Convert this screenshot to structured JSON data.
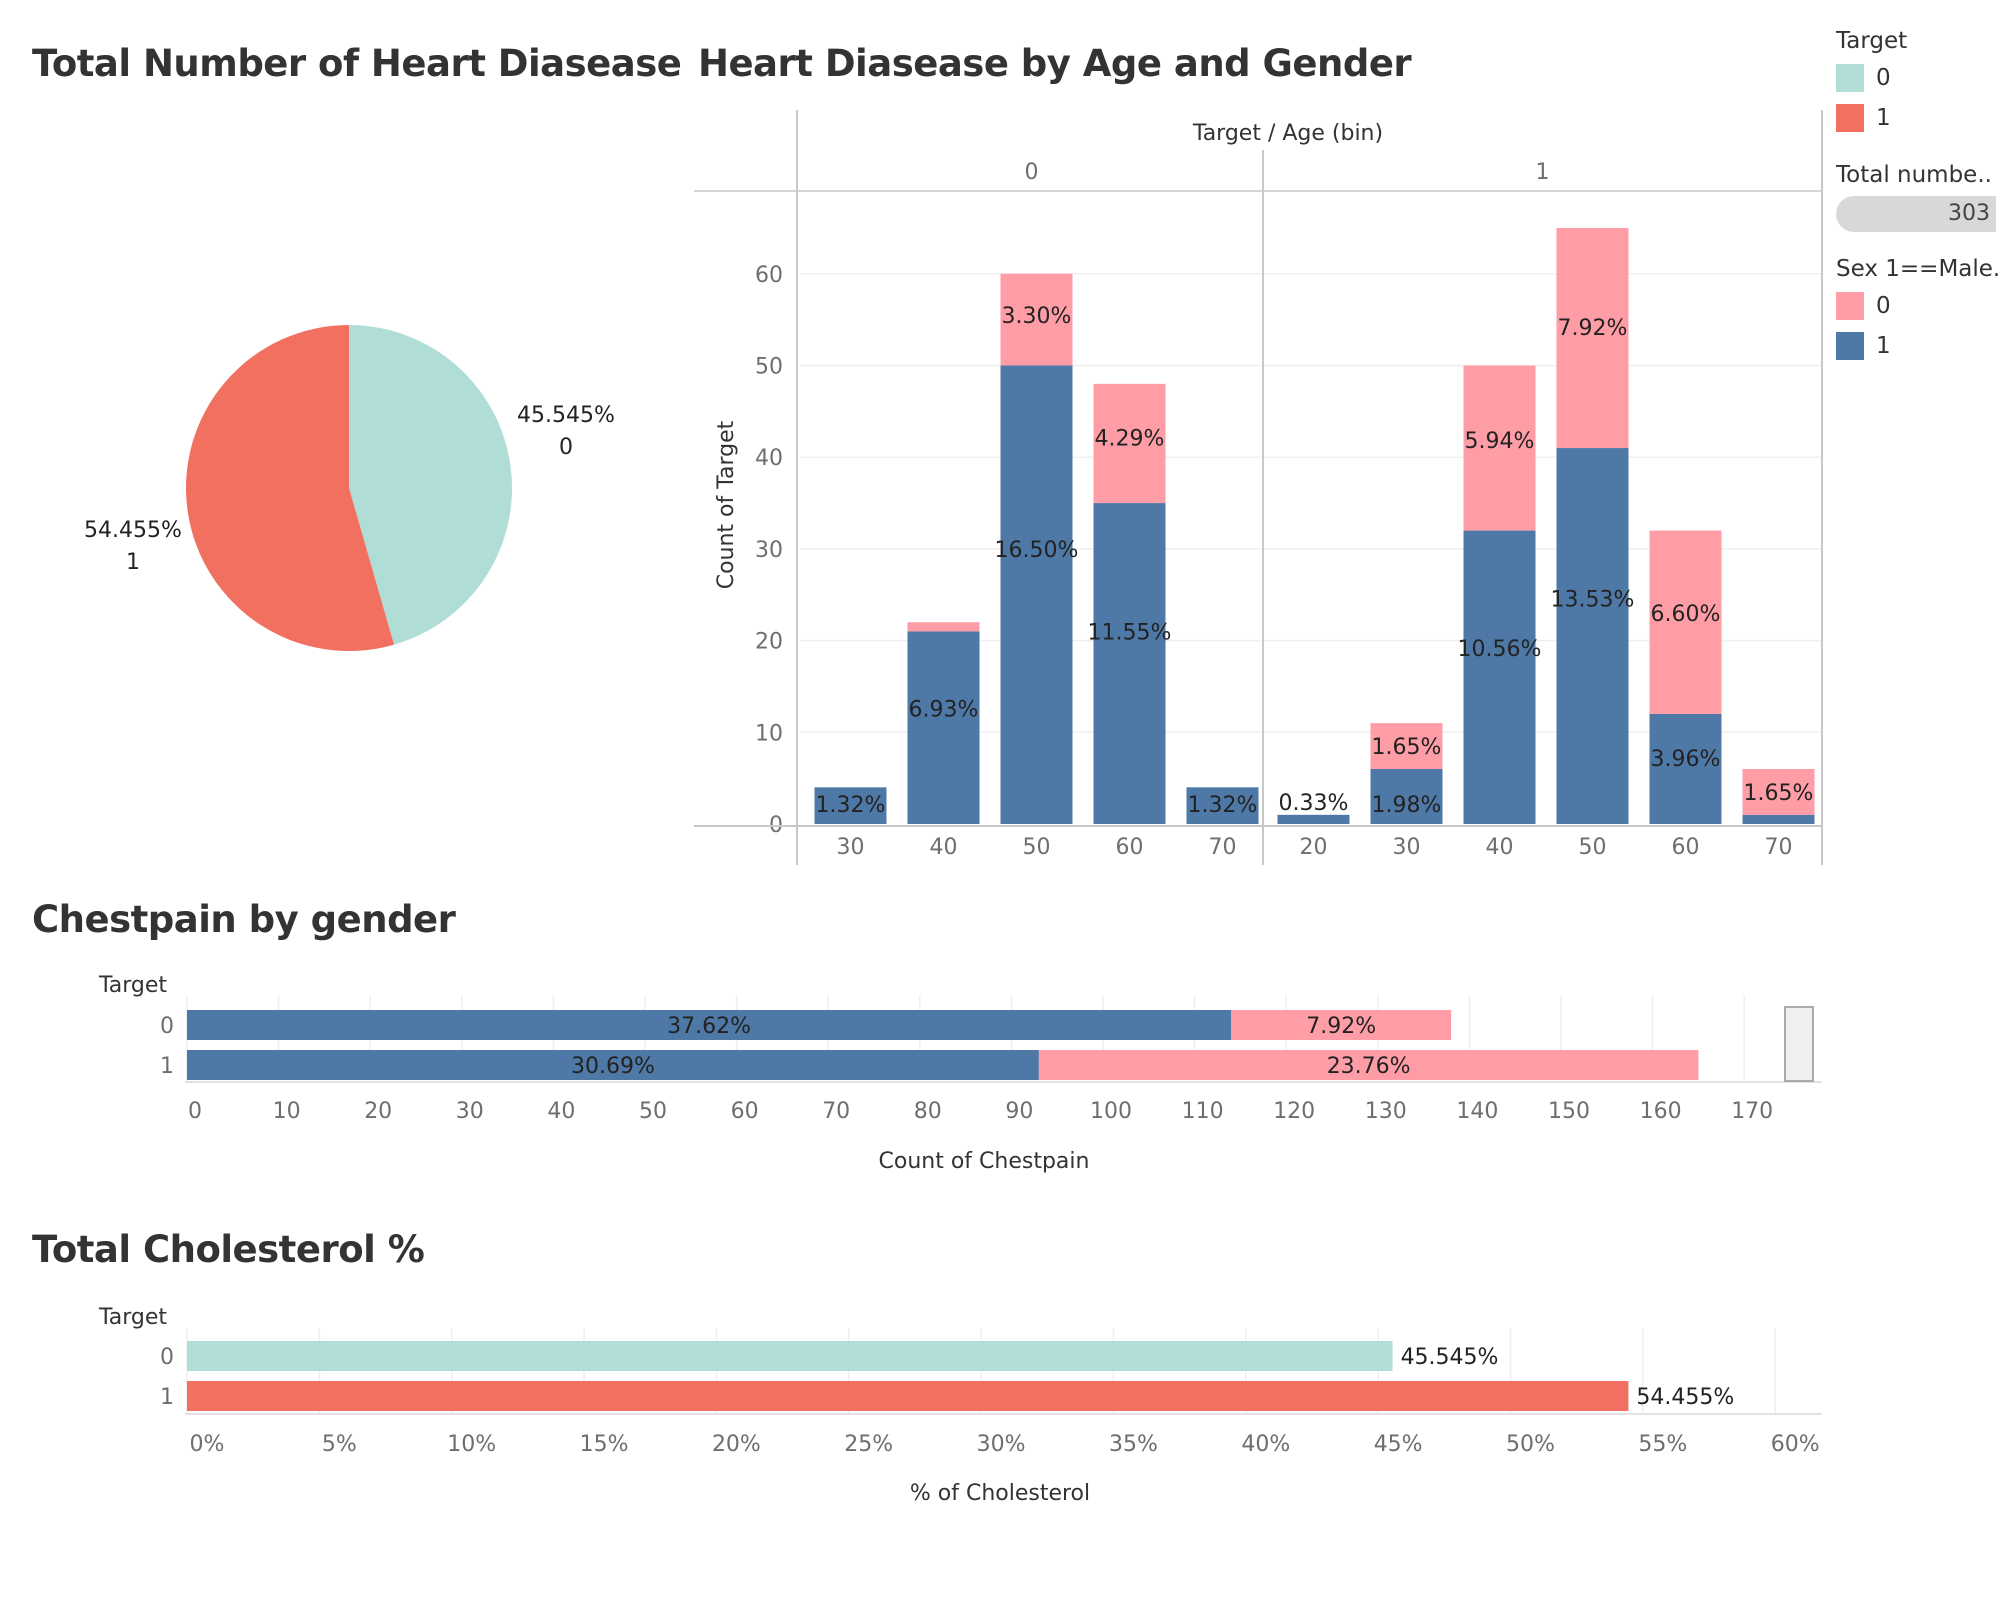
{
  "titles": {
    "pie": "Total Number of Heart Diasease",
    "age": "Heart Diasease by Age and Gender",
    "chest": "Chestpain by gender",
    "chol": "Total Cholesterol %"
  },
  "legend": {
    "target_title": "Target",
    "target_items": [
      {
        "label": "0",
        "color": "#b0ddd6"
      },
      {
        "label": "1",
        "color": "#f27060"
      }
    ],
    "total_title": "Total numbe..",
    "total_value": "303",
    "sex_title": "Sex 1==Male..",
    "sex_items": [
      {
        "label": "0",
        "color": "#ff9da6"
      },
      {
        "label": "1",
        "color": "#4e79a7"
      }
    ]
  },
  "chart_data": [
    {
      "type": "pie",
      "slices": [
        {
          "label": "0",
          "value": 45.545,
          "display": "45.545%",
          "color": "#b0ddd6"
        },
        {
          "label": "1",
          "value": 54.455,
          "display": "54.455%",
          "color": "#f27060"
        }
      ]
    },
    {
      "type": "bar",
      "stacked": true,
      "header": "Target / Age (bin)",
      "ylabel": "Count of Target",
      "ylim": [
        0,
        70
      ],
      "yticks": [
        0,
        10,
        20,
        30,
        40,
        50,
        60
      ],
      "panels": [
        {
          "label": "0",
          "bins": [
            {
              "x": "30",
              "male": 4,
              "female": 0,
              "male_label": "1.32%",
              "female_label": ""
            },
            {
              "x": "40",
              "male": 21,
              "female": 1,
              "male_label": "6.93%",
              "female_label": ""
            },
            {
              "x": "50",
              "male": 50,
              "female": 10,
              "male_label": "16.50%",
              "female_label": "3.30%"
            },
            {
              "x": "60",
              "male": 35,
              "female": 13,
              "male_label": "11.55%",
              "female_label": "4.29%"
            },
            {
              "x": "70",
              "male": 4,
              "female": 0,
              "male_label": "1.32%",
              "female_label": ""
            }
          ]
        },
        {
          "label": "1",
          "bins": [
            {
              "x": "20",
              "male": 1,
              "female": 0,
              "male_label": "0.33%",
              "female_label": ""
            },
            {
              "x": "30",
              "male": 6,
              "female": 5,
              "male_label": "1.98%",
              "female_label": "1.65%"
            },
            {
              "x": "40",
              "male": 32,
              "female": 18,
              "male_label": "10.56%",
              "female_label": "5.94%"
            },
            {
              "x": "50",
              "male": 41,
              "female": 24,
              "male_label": "13.53%",
              "female_label": "7.92%"
            },
            {
              "x": "60",
              "male": 12,
              "female": 20,
              "male_label": "3.96%",
              "female_label": "6.60%"
            },
            {
              "x": "70",
              "male": 1,
              "female": 5,
              "male_label": "",
              "female_label": "1.65%"
            }
          ]
        }
      ]
    },
    {
      "type": "bar",
      "orientation": "horizontal",
      "stacked": true,
      "row_header": "Target",
      "xlabel": "Count of Chestpain",
      "xlim": [
        0,
        176
      ],
      "xticks": [
        0,
        10,
        20,
        30,
        40,
        50,
        60,
        70,
        80,
        90,
        100,
        110,
        120,
        130,
        140,
        150,
        160,
        170
      ],
      "rows": [
        {
          "label": "0",
          "male": 114,
          "female": 24,
          "male_label": "37.62%",
          "female_label": "7.92%"
        },
        {
          "label": "1",
          "male": 93,
          "female": 72,
          "male_label": "30.69%",
          "female_label": "23.76%"
        }
      ]
    },
    {
      "type": "bar",
      "orientation": "horizontal",
      "row_header": "Target",
      "xlabel": "% of  Cholesterol",
      "xlim": [
        0,
        61.5
      ],
      "xticks": [
        0,
        5,
        10,
        15,
        20,
        25,
        30,
        35,
        40,
        45,
        50,
        55,
        60
      ],
      "tick_suffix": "%",
      "rows": [
        {
          "label": "0",
          "value": 45.545,
          "display": "45.545%",
          "color": "#b0ddd6"
        },
        {
          "label": "1",
          "value": 54.455,
          "display": "54.455%",
          "color": "#f27060"
        }
      ]
    }
  ]
}
